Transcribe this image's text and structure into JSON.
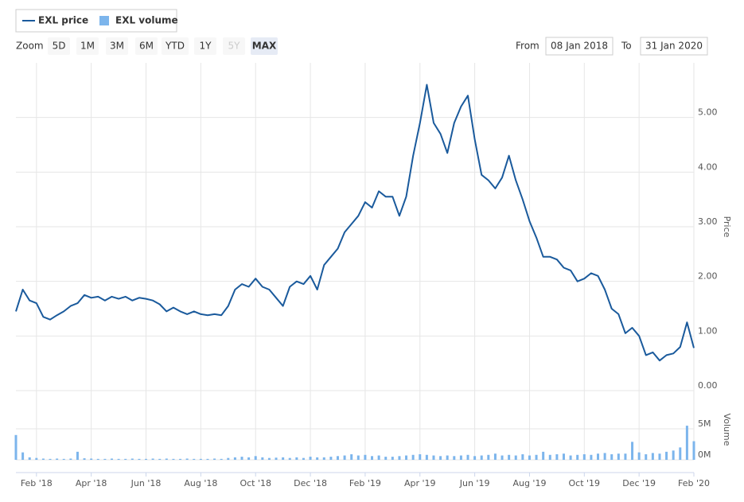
{
  "ui": {
    "zoom_label": "Zoom",
    "zoom_buttons": [
      "5D",
      "1M",
      "3M",
      "6M",
      "YTD",
      "1Y",
      "5Y",
      "MAX"
    ],
    "zoom_selected": 7,
    "zoom_disabled": [
      6
    ],
    "from_label": "From",
    "from_value": "08 Jan 2018",
    "to_label": "To",
    "to_value": "31 Jan 2020"
  },
  "chart_data": {
    "type": "line",
    "categories": [
      null,
      null,
      null,
      "Feb '18",
      null,
      null,
      null,
      null,
      null,
      null,
      null,
      "Apr '18",
      null,
      null,
      null,
      null,
      null,
      null,
      null,
      "Jun '18",
      null,
      null,
      null,
      null,
      null,
      null,
      null,
      "Aug '18",
      null,
      null,
      null,
      null,
      null,
      null,
      null,
      "Oct '18",
      null,
      null,
      null,
      null,
      null,
      null,
      null,
      "Dec '18",
      null,
      null,
      null,
      null,
      null,
      null,
      null,
      "Feb '19",
      null,
      null,
      null,
      null,
      null,
      null,
      null,
      "Apr '19",
      null,
      null,
      null,
      null,
      null,
      null,
      null,
      "Jun '19",
      null,
      null,
      null,
      null,
      null,
      null,
      null,
      "Aug '19",
      null,
      null,
      null,
      null,
      null,
      null,
      null,
      "Oct '19",
      null,
      null,
      null,
      null,
      null,
      null,
      null,
      "Dec '19",
      null,
      null,
      null,
      null,
      null,
      null,
      null,
      "Feb '20"
    ],
    "series": [
      {
        "name": "EXL price",
        "type": "line",
        "color": "#1a5a9c",
        "axis": "y",
        "values": [
          1.45,
          1.85,
          1.65,
          1.6,
          1.35,
          1.3,
          1.38,
          1.45,
          1.55,
          1.6,
          1.75,
          1.7,
          1.72,
          1.65,
          1.72,
          1.68,
          1.72,
          1.65,
          1.7,
          1.68,
          1.65,
          1.58,
          1.45,
          1.52,
          1.45,
          1.4,
          1.45,
          1.4,
          1.38,
          1.4,
          1.38,
          1.55,
          1.85,
          1.95,
          1.9,
          2.05,
          1.9,
          1.85,
          1.7,
          1.55,
          1.9,
          2.0,
          1.95,
          2.1,
          1.85,
          2.3,
          2.45,
          2.6,
          2.9,
          3.05,
          3.2,
          3.45,
          3.35,
          3.65,
          3.55,
          3.55,
          3.2,
          3.55,
          4.3,
          4.9,
          5.6,
          4.9,
          4.7,
          4.35,
          4.9,
          5.2,
          5.4,
          4.6,
          3.95,
          3.85,
          3.7,
          3.9,
          4.3,
          3.85,
          3.5,
          3.1,
          2.8,
          2.45,
          2.45,
          2.4,
          2.25,
          2.2,
          2.0,
          2.05,
          2.15,
          2.1,
          1.85,
          1.5,
          1.4,
          1.05,
          1.15,
          1.0,
          0.65,
          0.7,
          0.55,
          0.65,
          0.68,
          0.8,
          1.25,
          0.78
        ]
      },
      {
        "name": "EXL volume",
        "type": "column",
        "color": "#7cb5ec",
        "axis": "y2",
        "values": [
          4000000,
          1200000,
          400000,
          300000,
          200000,
          150000,
          200000,
          150000,
          200000,
          1300000,
          250000,
          200000,
          150000,
          150000,
          200000,
          150000,
          150000,
          200000,
          150000,
          150000,
          200000,
          150000,
          200000,
          150000,
          150000,
          200000,
          150000,
          150000,
          150000,
          200000,
          150000,
          300000,
          400000,
          500000,
          400000,
          600000,
          400000,
          300000,
          350000,
          400000,
          300000,
          400000,
          300000,
          500000,
          400000,
          400000,
          500000,
          600000,
          700000,
          900000,
          700000,
          800000,
          600000,
          700000,
          500000,
          500000,
          600000,
          700000,
          800000,
          900000,
          800000,
          700000,
          600000,
          700000,
          600000,
          700000,
          800000,
          600000,
          700000,
          800000,
          1000000,
          700000,
          800000,
          700000,
          900000,
          700000,
          800000,
          1300000,
          800000,
          900000,
          1000000,
          700000,
          800000,
          900000,
          800000,
          1000000,
          1100000,
          900000,
          1000000,
          1000000,
          2900000,
          1200000,
          900000,
          1100000,
          1000000,
          1300000,
          1500000,
          2000000,
          5500000,
          3000000
        ]
      }
    ],
    "ylabel": "Price",
    "ylim": [
      0,
      6
    ],
    "yticks": [
      {
        "value": 0,
        "label": "0.00"
      },
      {
        "value": 1,
        "label": "1.00"
      },
      {
        "value": 2,
        "label": "2.00"
      },
      {
        "value": 3,
        "label": "3.00"
      },
      {
        "value": 4,
        "label": "4.00"
      },
      {
        "value": 5,
        "label": "5.00"
      }
    ],
    "y2label": "Volume",
    "y2lim": [
      0,
      10000000
    ],
    "y2ticks": [
      {
        "value": 0,
        "label": "0M"
      },
      {
        "value": 5000000,
        "label": "5M"
      }
    ],
    "grid": true
  }
}
